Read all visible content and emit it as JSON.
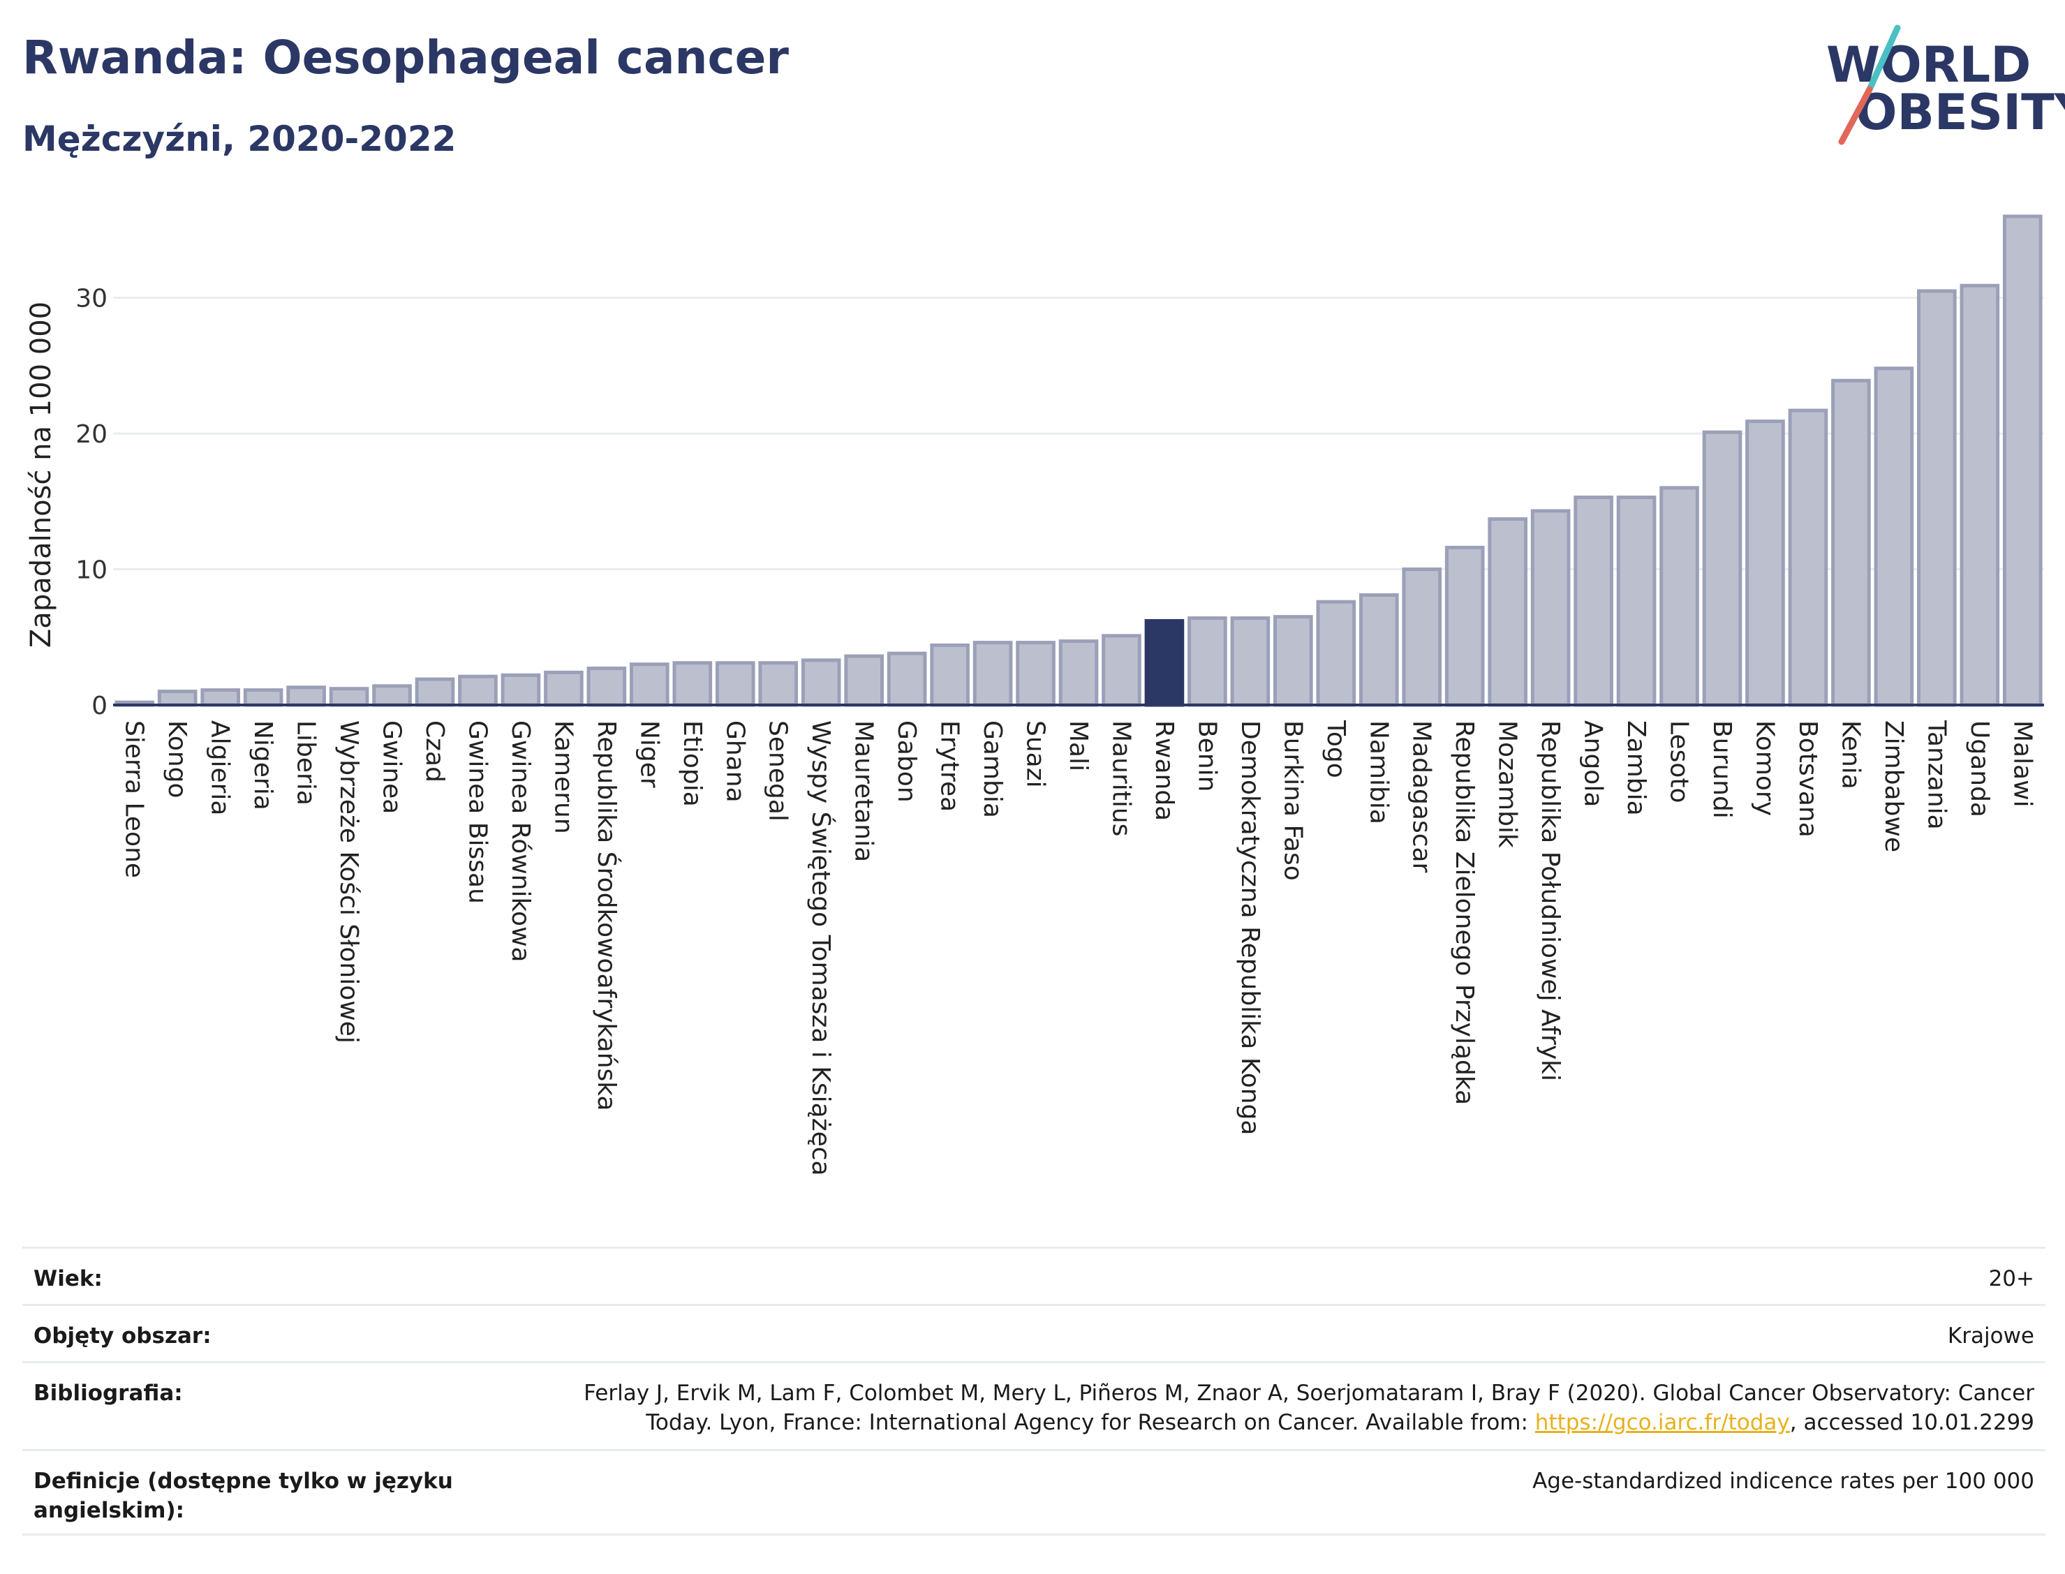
{
  "header": {
    "title": "Rwanda: Oesophageal cancer",
    "subtitle": "Mężczyźni, 2020-2022"
  },
  "logo": {
    "line1": "WORLD",
    "line2": "OBESITY",
    "slash_colors": [
      "#4bbfc3",
      "#e0675a"
    ]
  },
  "colors": {
    "highlight": "#2b3765",
    "bar_fill": "#bcc0ce",
    "bar_stroke": "#9ba0b8",
    "axis": "#2b3765",
    "grid": "#e8edf3"
  },
  "chart_data": {
    "type": "bar",
    "ylabel": "Zapadalność na 100 000",
    "ylim": [
      0,
      36
    ],
    "yticks": [
      0,
      10,
      20,
      30
    ],
    "grid": true,
    "highlight": "Rwanda",
    "categories": [
      "Sierra Leone",
      "Kongo",
      "Algieria",
      "Nigeria",
      "Liberia",
      "Wybrzeże Kości Słoniowej",
      "Gwinea",
      "Czad",
      "Gwinea Bissau",
      "Gwinea Równikowa",
      "Kamerun",
      "Republika Środkowoafrykańska",
      "Niger",
      "Etiopia",
      "Ghana",
      "Senegal",
      "Wyspy Świętego Tomasza i Książęca",
      "Mauretania",
      "Gabon",
      "Erytrea",
      "Gambia",
      "Suazi",
      "Mali",
      "Mauritius",
      "Rwanda",
      "Benin",
      "Demokratyczna Republika Konga",
      "Burkina Faso",
      "Togo",
      "Namibia",
      "Madagascar",
      "Republika Zielonego Przylądka",
      "Mozambik",
      "Republika Południowej Afryki",
      "Angola",
      "Zambia",
      "Lesoto",
      "Burundi",
      "Komory",
      "Botsvana",
      "Kenia",
      "Zimbabwe",
      "Tanzania",
      "Uganda",
      "Malawi"
    ],
    "values": [
      0.2,
      1.0,
      1.1,
      1.1,
      1.3,
      1.2,
      1.4,
      1.9,
      2.1,
      2.2,
      2.4,
      2.7,
      3.0,
      3.1,
      3.1,
      3.1,
      3.3,
      3.6,
      3.8,
      4.4,
      4.6,
      4.6,
      4.7,
      5.1,
      6.2,
      6.4,
      6.4,
      6.5,
      7.6,
      8.1,
      10.0,
      11.6,
      13.7,
      14.3,
      15.3,
      15.3,
      16.0,
      20.1,
      20.9,
      21.7,
      23.9,
      24.8,
      30.5,
      30.9,
      36.0
    ]
  },
  "info": {
    "rows": [
      {
        "label": "Wiek:",
        "value": "20+"
      },
      {
        "label": "Objęty obszar:",
        "value": "Krajowe"
      },
      {
        "label": "Bibliografia:",
        "value_before": "Ferlay J, Ervik M, Lam F, Colombet M, Mery L, Piñeros M, Znaor A, Soerjomataram I, Bray F (2020). Global Cancer Observatory: Cancer Today. Lyon, France: International Agency for Research on Cancer. Available from: ",
        "link": "https://gco.iarc.fr/today",
        "value_after": ", accessed 10.01.2299"
      },
      {
        "label": "Definicje (dostępne tylko w języku angielskim):",
        "value": "Age-standardized indicence rates per 100 000"
      }
    ]
  }
}
